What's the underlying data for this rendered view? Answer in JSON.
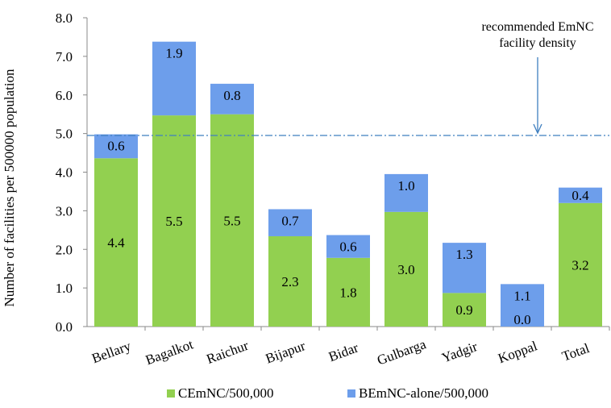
{
  "chart_data": {
    "type": "bar",
    "stacked": true,
    "categories": [
      "Bellary",
      "Bagalkot",
      "Raichur",
      "Bijapur",
      "Bidar",
      "Gulbarga",
      "Yadgir",
      "Koppal",
      "Total"
    ],
    "series": [
      {
        "name": "CEmNC/500,000",
        "values": [
          4.36,
          5.47,
          5.5,
          2.34,
          1.78,
          2.97,
          0.87,
          0.0,
          3.2
        ],
        "labels": [
          "4.4",
          "5.5",
          "5.5",
          "2.3",
          "1.8",
          "3.0",
          "0.9",
          "0.0",
          "3.2"
        ],
        "color": "#92d050"
      },
      {
        "name": "BEmNC-alone/500,000",
        "values": [
          0.62,
          1.91,
          0.79,
          0.7,
          0.59,
          0.98,
          1.3,
          1.1,
          0.4
        ],
        "labels": [
          "0.6",
          "1.9",
          "0.8",
          "0.7",
          "0.6",
          "1.0",
          "1.3",
          "1.1",
          "0.4"
        ],
        "color": "#6d9eeb"
      }
    ],
    "ylabel": "Number of facilities per 500000 population",
    "ylim": [
      0,
      8
    ],
    "yticks": [
      "0.0",
      "1.0",
      "2.0",
      "3.0",
      "4.0",
      "5.0",
      "6.0",
      "7.0",
      "8.0"
    ],
    "reference_line": {
      "value": 4.95,
      "color": "#3f7fbf"
    },
    "annotation": {
      "lines": [
        "recommended EmNC",
        "facility density"
      ]
    },
    "legend_position": "bottom",
    "grid": false
  }
}
